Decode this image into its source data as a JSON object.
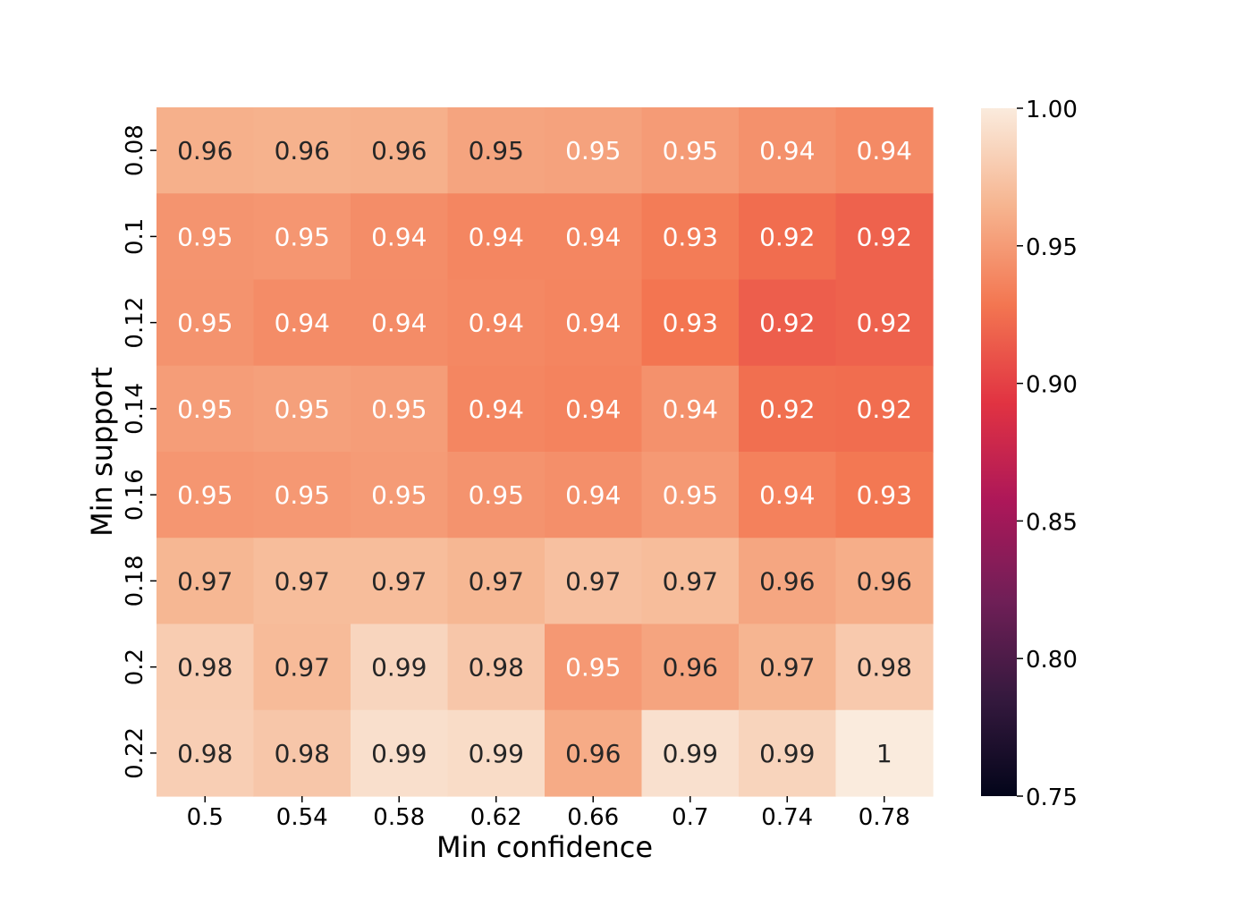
{
  "chart_data": {
    "type": "heatmap",
    "title": "",
    "xlabel": "Min confidence",
    "ylabel": "Min support",
    "x_categories": [
      "0.5",
      "0.54",
      "0.58",
      "0.62",
      "0.66",
      "0.7",
      "0.74",
      "0.78"
    ],
    "y_categories": [
      "0.08",
      "0.1",
      "0.12",
      "0.14",
      "0.16",
      "0.18",
      "0.2",
      "0.22"
    ],
    "values": [
      [
        0.962,
        0.963,
        0.962,
        0.955,
        0.954,
        0.95,
        0.944,
        0.94
      ],
      [
        0.946,
        0.947,
        0.942,
        0.938,
        0.938,
        0.932,
        0.924,
        0.918
      ],
      [
        0.945,
        0.941,
        0.941,
        0.939,
        0.937,
        0.928,
        0.916,
        0.918
      ],
      [
        0.951,
        0.953,
        0.951,
        0.938,
        0.936,
        0.944,
        0.925,
        0.924
      ],
      [
        0.947,
        0.948,
        0.95,
        0.945,
        0.943,
        0.949,
        0.935,
        0.93
      ],
      [
        0.966,
        0.97,
        0.97,
        0.966,
        0.972,
        0.97,
        0.956,
        0.961
      ],
      [
        0.98,
        0.969,
        0.986,
        0.976,
        0.948,
        0.955,
        0.965,
        0.978
      ],
      [
        0.981,
        0.976,
        0.992,
        0.99,
        0.959,
        0.993,
        0.985,
        1.0
      ]
    ],
    "annotations": [
      [
        "0.96",
        "0.96",
        "0.96",
        "0.95",
        "0.95",
        "0.95",
        "0.94",
        "0.94"
      ],
      [
        "0.95",
        "0.95",
        "0.94",
        "0.94",
        "0.94",
        "0.93",
        "0.92",
        "0.92"
      ],
      [
        "0.95",
        "0.94",
        "0.94",
        "0.94",
        "0.94",
        "0.93",
        "0.92",
        "0.92"
      ],
      [
        "0.95",
        "0.95",
        "0.95",
        "0.94",
        "0.94",
        "0.94",
        "0.92",
        "0.92"
      ],
      [
        "0.95",
        "0.95",
        "0.95",
        "0.95",
        "0.94",
        "0.95",
        "0.94",
        "0.93"
      ],
      [
        "0.97",
        "0.97",
        "0.97",
        "0.97",
        "0.97",
        "0.97",
        "0.96",
        "0.96"
      ],
      [
        "0.98",
        "0.97",
        "0.99",
        "0.98",
        "0.95",
        "0.96",
        "0.97",
        "0.98"
      ],
      [
        "0.98",
        "0.98",
        "0.99",
        "0.99",
        "0.96",
        "0.99",
        "0.99",
        "1"
      ]
    ],
    "colorbar": {
      "min": 0.75,
      "max": 1.0,
      "ticks": [
        "0.75",
        "0.80",
        "0.85",
        "0.90",
        "0.95",
        "1.00"
      ],
      "colormap": "rocket",
      "colormap_stops": [
        "#03051a",
        "#35193e",
        "#701f57",
        "#ad1759",
        "#e13342",
        "#f37651",
        "#f6b48f",
        "#faebdd"
      ]
    },
    "annotation_colors": {
      "dark_text": "#262626",
      "light_text": "#ffffff"
    },
    "grid": false,
    "legend": "colorbar-right"
  }
}
